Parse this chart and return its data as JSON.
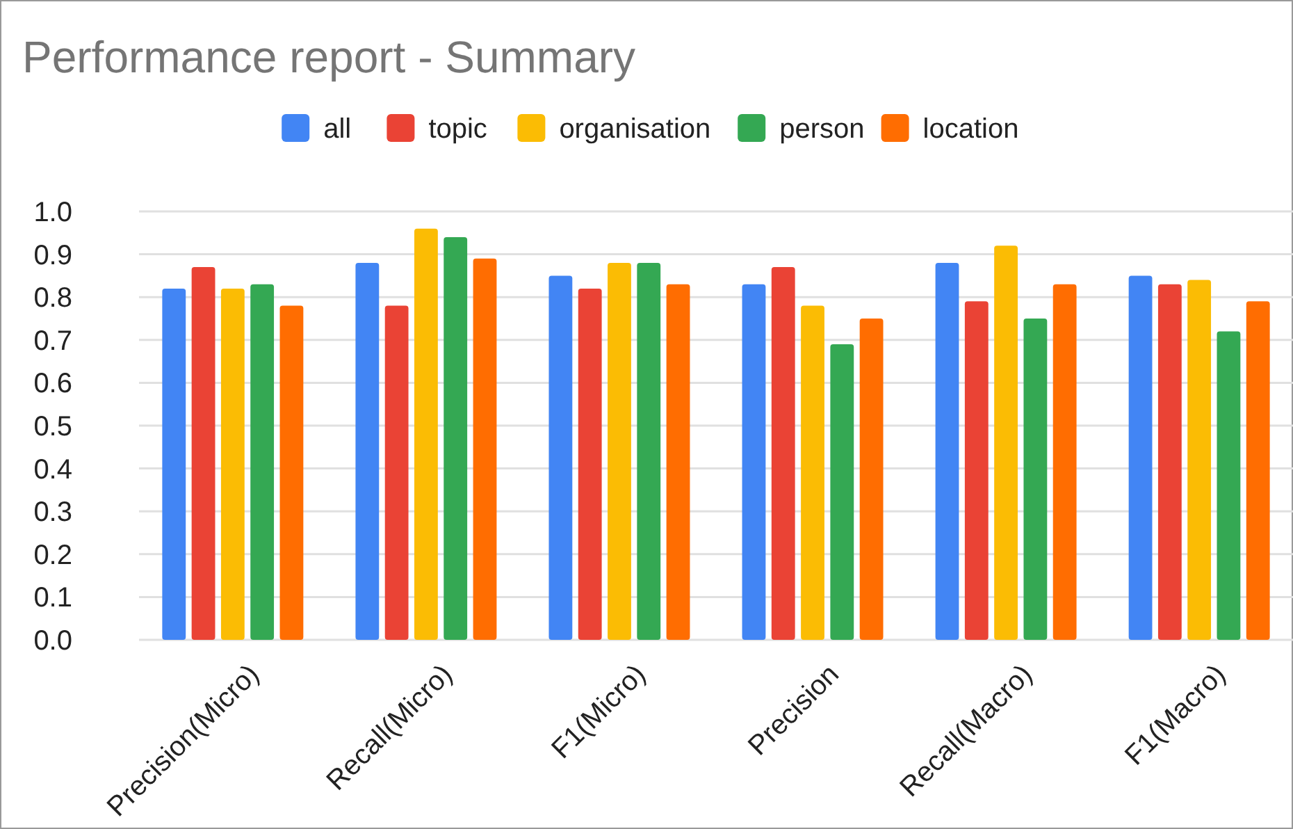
{
  "chart_data": {
    "type": "bar",
    "title": "Performance report - Summary",
    "categories": [
      "Precision(Micro)",
      "Recall(Micro)",
      "F1(Micro)",
      "Precision",
      "Recall(Macro)",
      "F1(Macro)"
    ],
    "series": [
      {
        "name": "all",
        "color": "#4285f4",
        "values": [
          0.82,
          0.88,
          0.85,
          0.83,
          0.88,
          0.85
        ]
      },
      {
        "name": "topic",
        "color": "#ea4335",
        "values": [
          0.87,
          0.78,
          0.82,
          0.87,
          0.79,
          0.83
        ]
      },
      {
        "name": "organisation",
        "color": "#fbbc04",
        "values": [
          0.82,
          0.96,
          0.88,
          0.78,
          0.92,
          0.84
        ]
      },
      {
        "name": "person",
        "color": "#34a853",
        "values": [
          0.83,
          0.94,
          0.88,
          0.69,
          0.75,
          0.72
        ]
      },
      {
        "name": "location",
        "color": "#ff6d01",
        "values": [
          0.78,
          0.89,
          0.83,
          0.75,
          0.83,
          0.79
        ]
      }
    ],
    "ylim": [
      0,
      1
    ],
    "yticks": [
      {
        "value": 0,
        "label": "0.0"
      },
      0.1,
      0.2,
      0.3,
      0.4,
      0.5,
      0.6,
      0.7,
      0.8,
      0.9,
      {
        "value": 1,
        "label": "1.0"
      }
    ],
    "grid": "y",
    "legend": "top"
  }
}
